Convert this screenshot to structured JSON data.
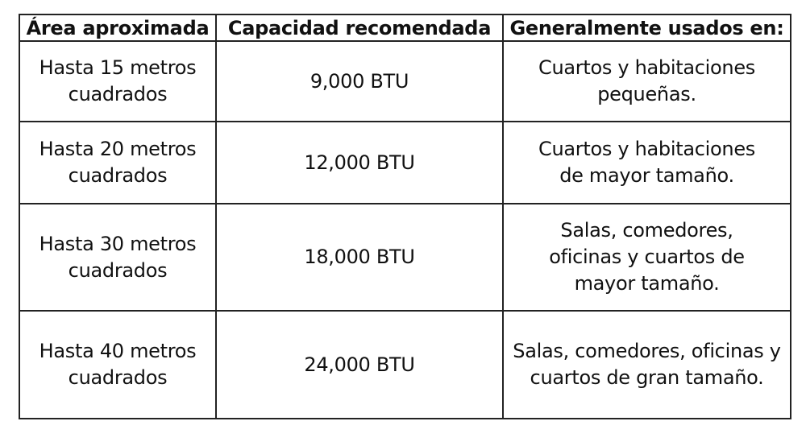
{
  "table": {
    "headers": [
      "Área aproximada",
      "Capacidad recomendada",
      "Generalmente usados en:"
    ],
    "rows": [
      {
        "area": "Hasta 15 metros cuadrados",
        "capacity": "9,000 BTU",
        "usage": "Cuartos y habitaciones pequeñas."
      },
      {
        "area": "Hasta 20 metros cuadrados",
        "capacity": "12,000 BTU",
        "usage": "Cuartos y habitaciones de mayor tamaño."
      },
      {
        "area": "Hasta 30 metros cuadrados",
        "capacity": "18,000 BTU",
        "usage": "Salas, comedores, oficinas y cuartos de mayor tamaño."
      },
      {
        "area": "Hasta 40 metros cuadrados",
        "capacity": "24,000 BTU",
        "usage": "Salas, comedores, oficinas y cuartos de gran tamaño."
      }
    ]
  }
}
